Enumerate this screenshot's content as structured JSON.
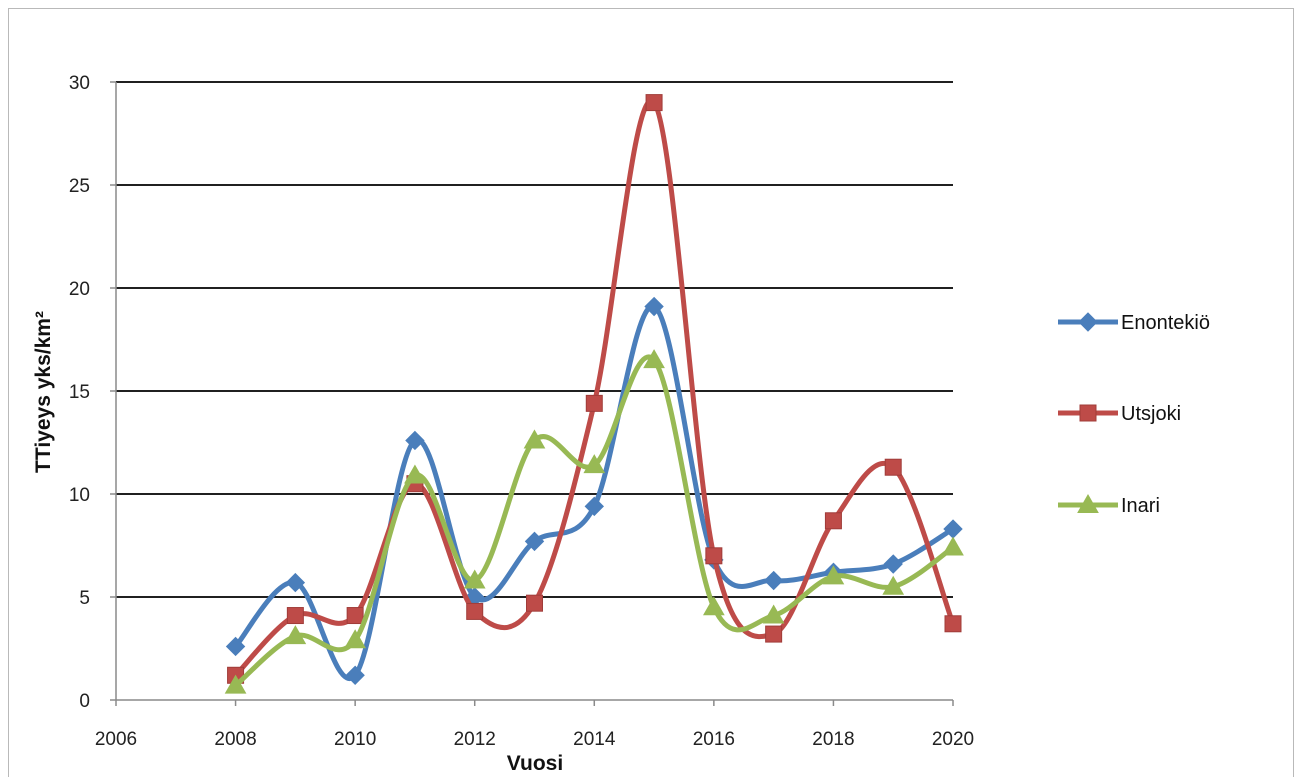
{
  "chart_data": {
    "type": "line",
    "smooth": true,
    "title": "",
    "xlabel": "Vuosi",
    "ylabel": "TTiyeys yks/km²",
    "xlim": [
      2006,
      2020
    ],
    "ylim": [
      0,
      30
    ],
    "xticks": [
      2006,
      2008,
      2010,
      2012,
      2014,
      2016,
      2018,
      2020
    ],
    "yticks": [
      0,
      5,
      10,
      15,
      20,
      25,
      30
    ],
    "grid": "horizontal",
    "legend_position": "right",
    "x": [
      2008,
      2009,
      2010,
      2011,
      2012,
      2013,
      2014,
      2015,
      2016,
      2017,
      2018,
      2019,
      2020
    ],
    "series": [
      {
        "name": "Enontekiö",
        "color": "#4a7ebb",
        "marker": "diamond",
        "values": [
          2.6,
          5.7,
          1.2,
          12.6,
          5.0,
          7.7,
          9.4,
          19.1,
          6.8,
          5.8,
          6.2,
          6.6,
          8.3
        ]
      },
      {
        "name": "Utsjoki",
        "color": "#be4b48",
        "marker": "square",
        "values": [
          1.2,
          4.1,
          4.1,
          10.5,
          4.3,
          4.7,
          14.4,
          29.0,
          7.0,
          3.2,
          8.7,
          11.3,
          3.7
        ]
      },
      {
        "name": "Inari",
        "color": "#98b954",
        "marker": "triangle",
        "values": [
          0.7,
          3.1,
          2.9,
          10.9,
          5.8,
          12.6,
          11.4,
          16.5,
          4.5,
          4.1,
          6.0,
          5.5,
          7.4
        ]
      }
    ]
  }
}
